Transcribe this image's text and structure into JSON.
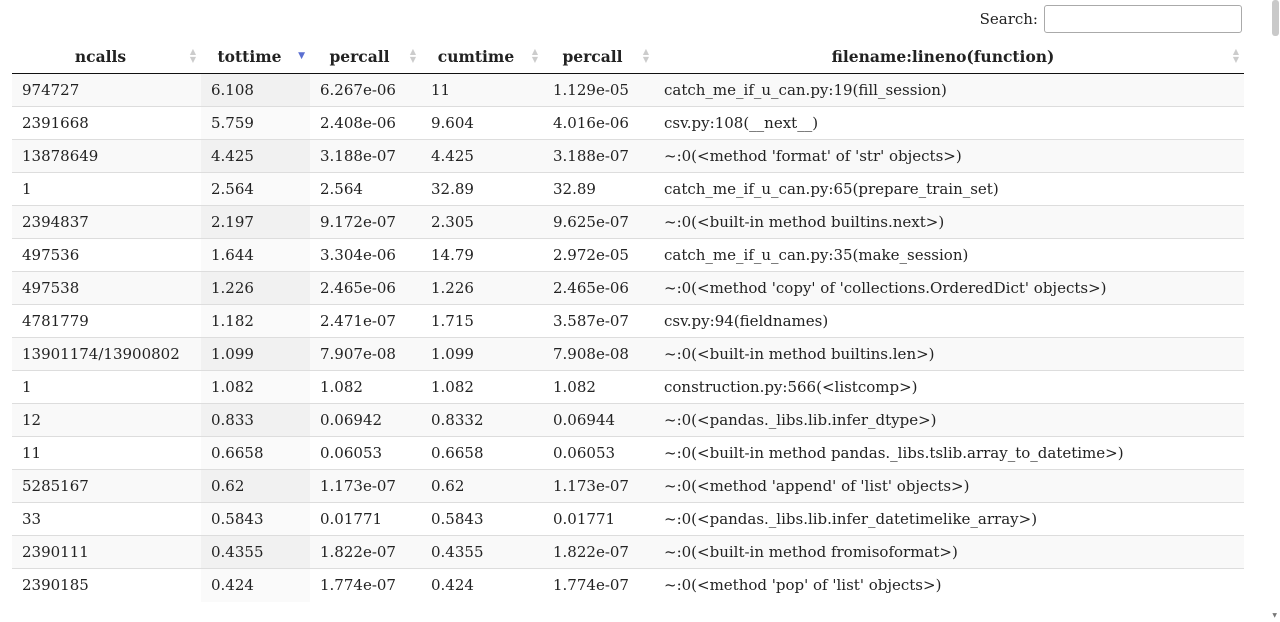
{
  "search": {
    "label": "Search:",
    "value": "",
    "placeholder": ""
  },
  "columns": [
    "ncalls",
    "tottime",
    "percall",
    "cumtime",
    "percall",
    "filename:lineno(function)"
  ],
  "sort": {
    "column": "tottime",
    "direction": "descending",
    "indicator_color": "#5b6fd1"
  },
  "rows": [
    [
      "974727",
      "6.108",
      "6.267e-06",
      "11",
      "1.129e-05",
      "catch_me_if_u_can.py:19(fill_session)"
    ],
    [
      "2391668",
      "5.759",
      "2.408e-06",
      "9.604",
      "4.016e-06",
      "csv.py:108(__next__)"
    ],
    [
      "13878649",
      "4.425",
      "3.188e-07",
      "4.425",
      "3.188e-07",
      "~:0(<method 'format' of 'str' objects>)"
    ],
    [
      "1",
      "2.564",
      "2.564",
      "32.89",
      "32.89",
      "catch_me_if_u_can.py:65(prepare_train_set)"
    ],
    [
      "2394837",
      "2.197",
      "9.172e-07",
      "2.305",
      "9.625e-07",
      "~:0(<built-in method builtins.next>)"
    ],
    [
      "497536",
      "1.644",
      "3.304e-06",
      "14.79",
      "2.972e-05",
      "catch_me_if_u_can.py:35(make_session)"
    ],
    [
      "497538",
      "1.226",
      "2.465e-06",
      "1.226",
      "2.465e-06",
      "~:0(<method 'copy' of 'collections.OrderedDict' objects>)"
    ],
    [
      "4781779",
      "1.182",
      "2.471e-07",
      "1.715",
      "3.587e-07",
      "csv.py:94(fieldnames)"
    ],
    [
      "13901174/13900802",
      "1.099",
      "7.907e-08",
      "1.099",
      "7.908e-08",
      "~:0(<built-in method builtins.len>)"
    ],
    [
      "1",
      "1.082",
      "1.082",
      "1.082",
      "1.082",
      "construction.py:566(<listcomp>)"
    ],
    [
      "12",
      "0.833",
      "0.06942",
      "0.8332",
      "0.06944",
      "~:0(<pandas._libs.lib.infer_dtype>)"
    ],
    [
      "11",
      "0.6658",
      "0.06053",
      "0.6658",
      "0.06053",
      "~:0(<built-in method pandas._libs.tslib.array_to_datetime>)"
    ],
    [
      "5285167",
      "0.62",
      "1.173e-07",
      "0.62",
      "1.173e-07",
      "~:0(<method 'append' of 'list' objects>)"
    ],
    [
      "33",
      "0.5843",
      "0.01771",
      "0.5843",
      "0.01771",
      "~:0(<pandas._libs.lib.infer_datetimelike_array>)"
    ],
    [
      "2390111",
      "0.4355",
      "1.822e-07",
      "0.4355",
      "1.822e-07",
      "~:0(<built-in method fromisoformat>)"
    ],
    [
      "2390185",
      "0.424",
      "1.774e-07",
      "0.424",
      "1.774e-07",
      "~:0(<method 'pop' of 'list' objects>)"
    ]
  ]
}
